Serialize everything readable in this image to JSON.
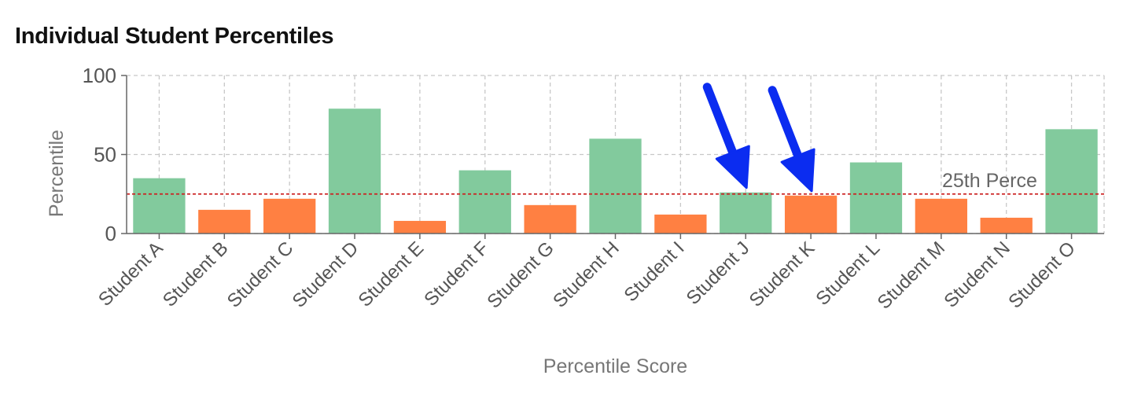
{
  "chart_data": {
    "type": "bar",
    "title": "Individual Student Percentiles",
    "xlabel": "Percentile Score",
    "ylabel": "Percentile",
    "ylim": [
      0,
      100
    ],
    "yticks": [
      0,
      50,
      100
    ],
    "grid": true,
    "categories": [
      "Student A",
      "Student B",
      "Student C",
      "Student D",
      "Student E",
      "Student F",
      "Student G",
      "Student H",
      "Student I",
      "Student J",
      "Student K",
      "Student L",
      "Student M",
      "Student N",
      "Student O"
    ],
    "values": [
      35,
      15,
      22,
      79,
      8,
      40,
      18,
      60,
      12,
      26,
      24,
      45,
      22,
      10,
      66
    ],
    "bar_colors": {
      "above": "#82ca9d",
      "below": "#ff8042"
    },
    "reference_line": {
      "value": 25,
      "label": "25th Perce",
      "color": "#cc2222"
    },
    "annotations": [
      {
        "type": "arrow",
        "target": "Student J",
        "color": "#0b2cf0"
      },
      {
        "type": "arrow",
        "target": "Student K",
        "color": "#0b2cf0"
      }
    ]
  }
}
